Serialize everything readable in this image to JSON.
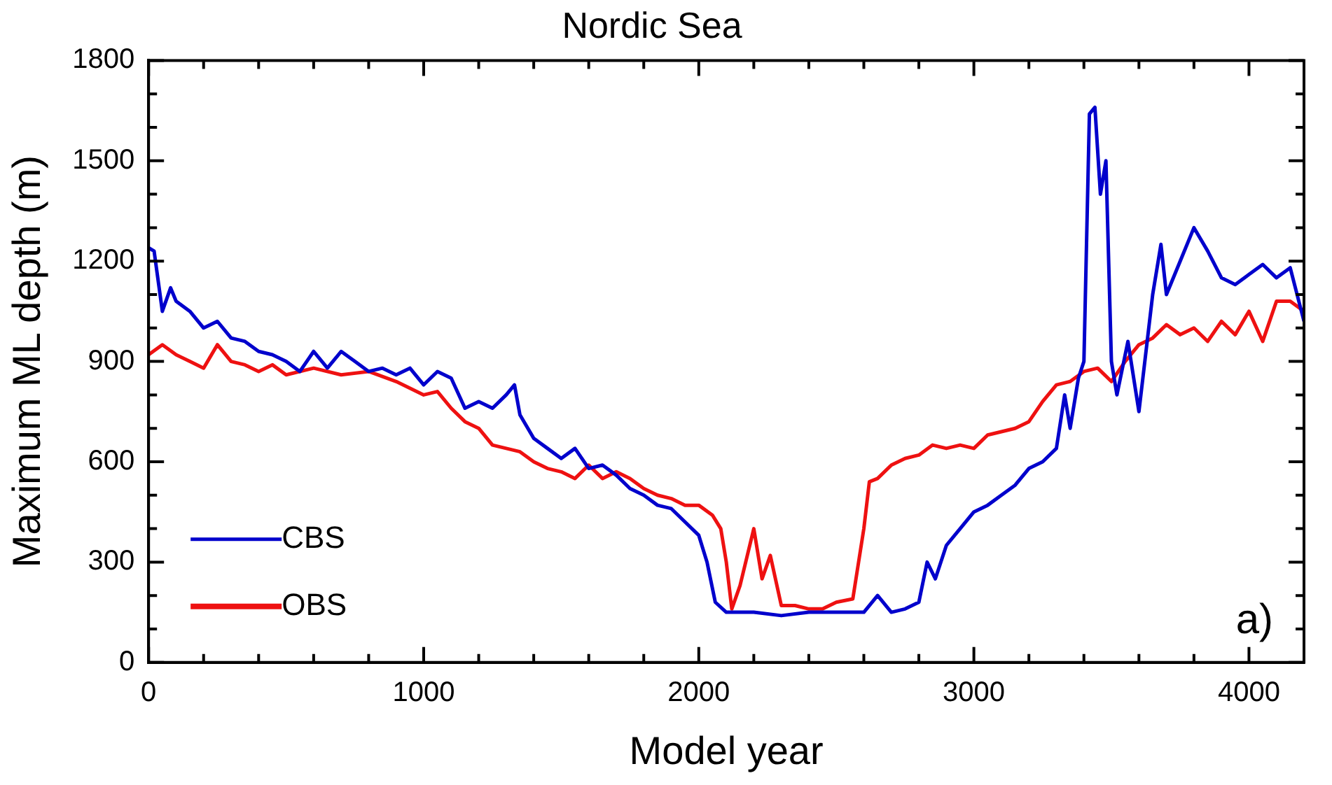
{
  "chart_data": {
    "type": "line",
    "title": "Nordic Sea",
    "xlabel": "Model year",
    "ylabel": "Maximum ML depth (m)",
    "annotations": [
      "a)"
    ],
    "xlim": [
      0,
      4200
    ],
    "ylim": [
      0,
      1800
    ],
    "xticks": [
      0,
      {
        "value": 200,
        "label": null
      },
      {
        "value": 400,
        "label": null
      },
      {
        "value": 600,
        "label": null
      },
      {
        "value": 800,
        "label": null
      },
      1000,
      {
        "value": 1200,
        "label": null
      },
      {
        "value": 1400,
        "label": null
      },
      {
        "value": 1600,
        "label": null
      },
      {
        "value": 1800,
        "label": null
      },
      2000,
      {
        "value": 2200,
        "label": null
      },
      {
        "value": 2400,
        "label": null
      },
      {
        "value": 2600,
        "label": null
      },
      {
        "value": 2800,
        "label": null
      },
      3000,
      {
        "value": 3200,
        "label": null
      },
      {
        "value": 3400,
        "label": null
      },
      {
        "value": 3600,
        "label": null
      },
      {
        "value": 3800,
        "label": null
      },
      4000
    ],
    "yticks": [
      0,
      {
        "value": 100,
        "label": null
      },
      {
        "value": 200,
        "label": null
      },
      300,
      {
        "value": 400,
        "label": null
      },
      {
        "value": 500,
        "label": null
      },
      600,
      {
        "value": 700,
        "label": null
      },
      {
        "value": 800,
        "label": null
      },
      900,
      {
        "value": 1000,
        "label": null
      },
      {
        "value": 1100,
        "label": null
      },
      1200,
      {
        "value": 1300,
        "label": null
      },
      {
        "value": 1400,
        "label": null
      },
      1500,
      {
        "value": 1600,
        "label": null
      },
      {
        "value": 1700,
        "label": null
      },
      1800
    ],
    "legend": "bottom left",
    "marker": "none",
    "line_style": "solid",
    "series": [
      {
        "name": "CBS",
        "color": "#0000cc",
        "x": [
          0,
          20,
          50,
          80,
          100,
          150,
          200,
          250,
          300,
          350,
          400,
          450,
          500,
          550,
          600,
          650,
          700,
          750,
          800,
          850,
          900,
          950,
          1000,
          1050,
          1100,
          1150,
          1200,
          1250,
          1300,
          1330,
          1350,
          1400,
          1450,
          1500,
          1550,
          1600,
          1650,
          1700,
          1750,
          1800,
          1850,
          1900,
          1950,
          2000,
          2030,
          2060,
          2100,
          2200,
          2300,
          2400,
          2500,
          2600,
          2650,
          2700,
          2750,
          2800,
          2830,
          2860,
          2900,
          2950,
          3000,
          3050,
          3100,
          3150,
          3200,
          3250,
          3300,
          3330,
          3350,
          3380,
          3400,
          3420,
          3440,
          3460,
          3480,
          3500,
          3520,
          3560,
          3600,
          3650,
          3680,
          3700,
          3750,
          3800,
          3850,
          3900,
          3950,
          4000,
          4050,
          4100,
          4150,
          4200
        ],
        "values": [
          1240,
          1230,
          1050,
          1120,
          1080,
          1050,
          1000,
          1020,
          970,
          960,
          930,
          920,
          900,
          870,
          930,
          880,
          930,
          900,
          870,
          880,
          860,
          880,
          830,
          870,
          850,
          760,
          780,
          760,
          800,
          830,
          740,
          670,
          640,
          610,
          640,
          580,
          590,
          560,
          520,
          500,
          470,
          460,
          420,
          380,
          300,
          180,
          150,
          150,
          140,
          150,
          150,
          150,
          200,
          150,
          160,
          180,
          300,
          250,
          350,
          400,
          450,
          470,
          500,
          530,
          580,
          600,
          640,
          800,
          700,
          850,
          900,
          1640,
          1660,
          1400,
          1500,
          900,
          800,
          960,
          750,
          1100,
          1250,
          1100,
          1200,
          1300,
          1230,
          1150,
          1130,
          1160,
          1190,
          1150,
          1180,
          1020
        ]
      },
      {
        "name": "OBS",
        "color": "#ee1111",
        "x": [
          0,
          50,
          100,
          150,
          200,
          250,
          300,
          350,
          400,
          450,
          500,
          600,
          700,
          800,
          900,
          1000,
          1050,
          1100,
          1150,
          1200,
          1250,
          1300,
          1350,
          1400,
          1450,
          1500,
          1550,
          1600,
          1650,
          1700,
          1750,
          1800,
          1850,
          1900,
          1950,
          2000,
          2050,
          2080,
          2100,
          2120,
          2150,
          2200,
          2230,
          2260,
          2300,
          2350,
          2400,
          2450,
          2500,
          2560,
          2600,
          2620,
          2650,
          2700,
          2750,
          2800,
          2850,
          2900,
          2950,
          3000,
          3050,
          3100,
          3150,
          3200,
          3250,
          3300,
          3350,
          3400,
          3450,
          3500,
          3550,
          3600,
          3650,
          3700,
          3750,
          3800,
          3850,
          3900,
          3950,
          4000,
          4050,
          4100,
          4150,
          4200
        ],
        "values": [
          920,
          950,
          920,
          900,
          880,
          950,
          900,
          890,
          870,
          890,
          860,
          880,
          860,
          870,
          840,
          800,
          810,
          760,
          720,
          700,
          650,
          640,
          630,
          600,
          580,
          570,
          550,
          590,
          550,
          570,
          550,
          520,
          500,
          490,
          470,
          470,
          440,
          400,
          300,
          160,
          230,
          400,
          250,
          320,
          170,
          170,
          160,
          160,
          180,
          190,
          400,
          540,
          550,
          590,
          610,
          620,
          650,
          640,
          650,
          640,
          680,
          690,
          700,
          720,
          780,
          830,
          840,
          870,
          880,
          840,
          900,
          950,
          970,
          1010,
          980,
          1000,
          960,
          1020,
          980,
          1050,
          960,
          1080,
          1080,
          1050
        ]
      }
    ]
  }
}
